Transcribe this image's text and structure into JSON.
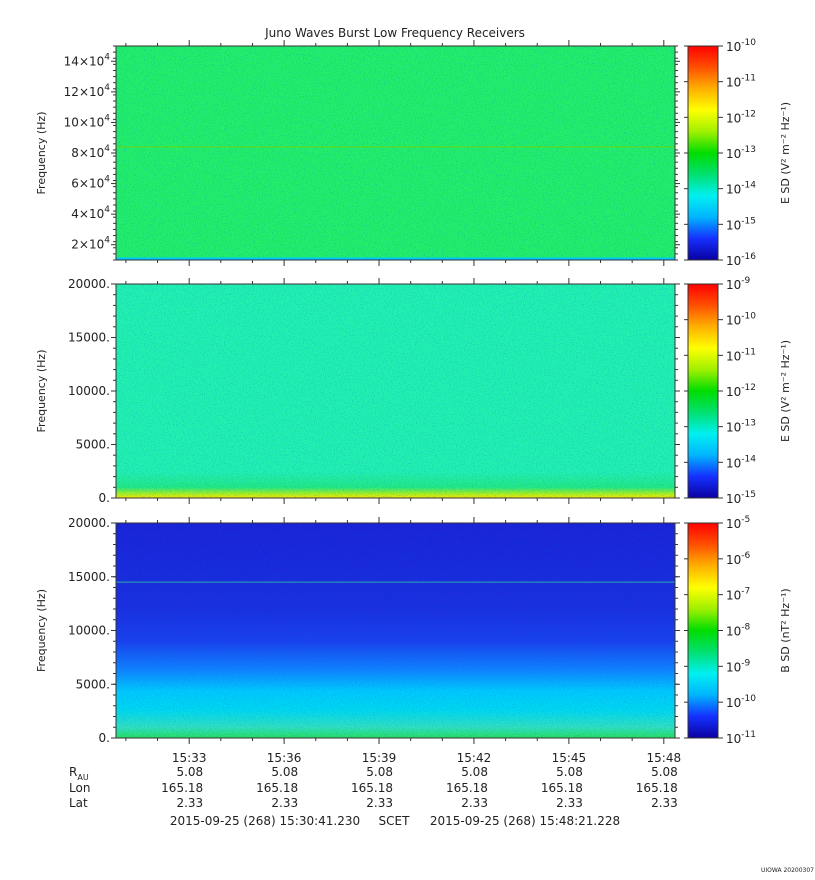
{
  "title": "Juno Waves Burst Low Frequency Receivers",
  "credit": "UIOWA 20200307",
  "chart_data": [
    {
      "type": "heatmap",
      "panel": "top",
      "ylabel": "Frequency (Hz)",
      "ylim": [
        10000,
        150000
      ],
      "y_ticks": [
        {
          "value": 20000,
          "mant": "2×10",
          "exp": "4"
        },
        {
          "value": 40000,
          "mant": "4×10",
          "exp": "4"
        },
        {
          "value": 60000,
          "mant": "6×10",
          "exp": "4"
        },
        {
          "value": 80000,
          "mant": "8×10",
          "exp": "4"
        },
        {
          "value": 100000,
          "mant": "10×10",
          "exp": "4"
        },
        {
          "value": 120000,
          "mant": "12×10",
          "exp": "4"
        },
        {
          "value": 140000,
          "mant": "14×10",
          "exp": "4"
        }
      ],
      "colorbar_label": "E SD (V² m⁻² Hz⁻¹)",
      "colorbar_range_exp": [
        -16,
        -10
      ],
      "colorbar_ticks": [
        "-10",
        "-11",
        "-12",
        "-13",
        "-14",
        "-15",
        "-16"
      ],
      "background_level_exp": -13.6,
      "base_color": "#22ee6a",
      "features": [
        {
          "kind": "narrowband line",
          "frequency_hz": 84000
        }
      ]
    },
    {
      "type": "heatmap",
      "panel": "middle",
      "ylabel": "Frequency (Hz)",
      "ylim": [
        0,
        20000
      ],
      "y_ticks": [
        {
          "value": 0,
          "label": "0."
        },
        {
          "value": 5000,
          "label": "5000."
        },
        {
          "value": 10000,
          "label": "10000."
        },
        {
          "value": 15000,
          "label": "15000."
        },
        {
          "value": 20000,
          "label": "20000."
        }
      ],
      "colorbar_label": "E SD (V² m⁻² Hz⁻¹)",
      "colorbar_range_exp": [
        -15,
        -9
      ],
      "colorbar_ticks": [
        "-9",
        "-10",
        "-11",
        "-12",
        "-13",
        "-14",
        "-15"
      ],
      "background_level_exp": -12.9,
      "base_color": "#22f0b0",
      "features": [
        {
          "kind": "low-frequency enhancement",
          "frequency_hz_max": 1000
        }
      ]
    },
    {
      "type": "heatmap",
      "panel": "bottom",
      "ylabel": "Frequency (Hz)",
      "ylim": [
        0,
        20000
      ],
      "y_ticks": [
        {
          "value": 0,
          "label": "0."
        },
        {
          "value": 5000,
          "label": "5000."
        },
        {
          "value": 10000,
          "label": "10000."
        },
        {
          "value": 15000,
          "label": "15000."
        },
        {
          "value": 20000,
          "label": "20000."
        }
      ],
      "colorbar_label": "B SD (nT² Hz⁻¹)",
      "colorbar_range_exp": [
        -11,
        -5
      ],
      "colorbar_ticks": [
        "-5",
        "-6",
        "-7",
        "-8",
        "-9",
        "-10",
        "-11"
      ],
      "background_level_exp": -10.3,
      "base_color": "#1a2ee0",
      "features": [
        {
          "kind": "narrowband line",
          "frequency_hz": 14500
        },
        {
          "kind": "broadband enhancement below",
          "frequency_hz_max": 7000
        }
      ]
    }
  ],
  "x_axis": {
    "start_time": "15:30:41.230",
    "end_time": "15:48:21.228",
    "tick_labels": [
      "15:33",
      "15:36",
      "15:39",
      "15:42",
      "15:45",
      "15:48"
    ],
    "tick_minutes": [
      33,
      36,
      39,
      42,
      45,
      48
    ]
  },
  "ephemeris": {
    "rows": [
      {
        "label": "R",
        "sub": "AU",
        "values": [
          "5.08",
          "5.08",
          "5.08",
          "5.08",
          "5.08",
          "5.08"
        ]
      },
      {
        "label": "Lon",
        "values": [
          "165.18",
          "165.18",
          "165.18",
          "165.18",
          "165.18",
          "165.18"
        ]
      },
      {
        "label": "Lat",
        "values": [
          "2.33",
          "2.33",
          "2.33",
          "2.33",
          "2.33",
          "2.33"
        ]
      }
    ]
  },
  "time_range": {
    "start": "2015-09-25 (268) 15:30:41.230",
    "frame": "SCET",
    "end": "2015-09-25 (268) 15:48:21.228"
  }
}
